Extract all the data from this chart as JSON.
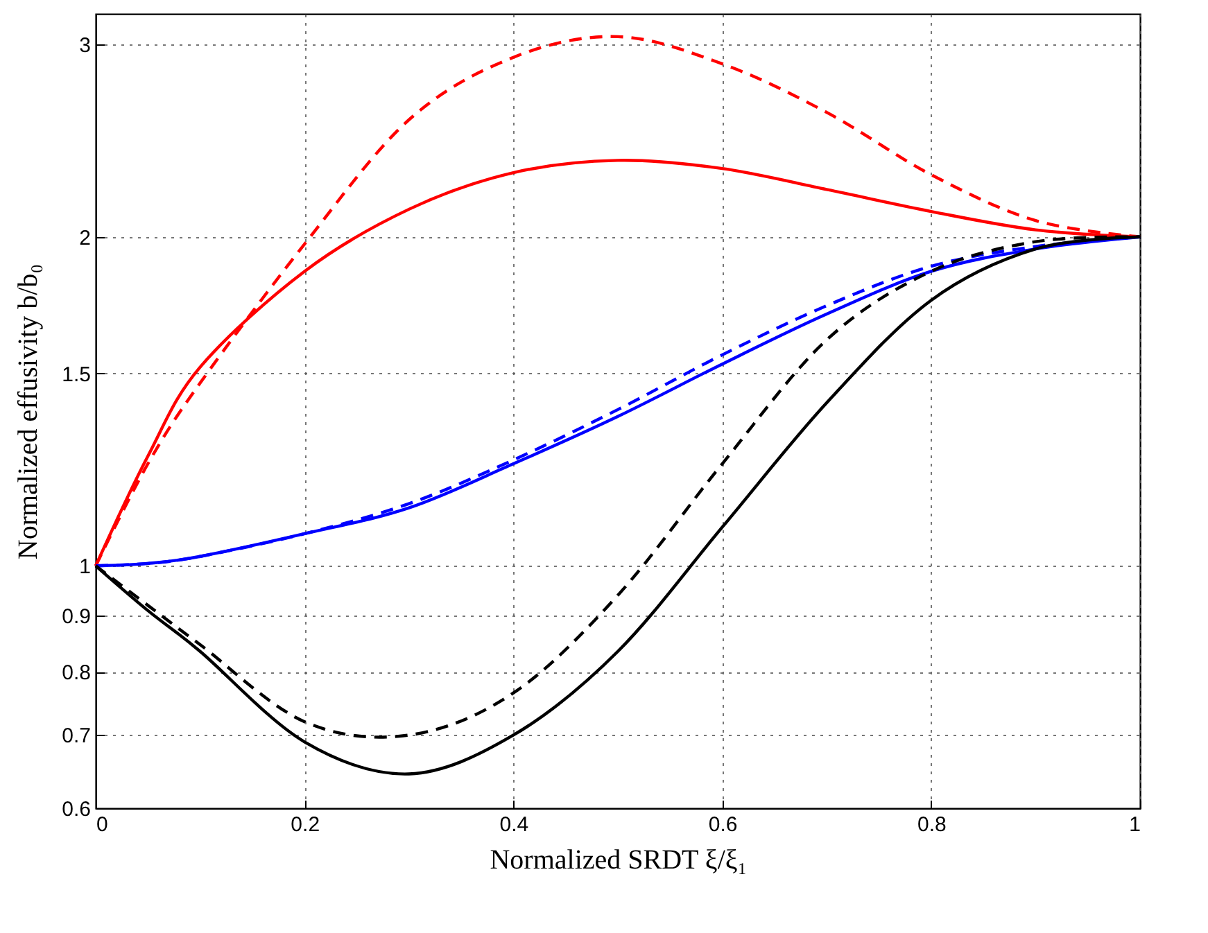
{
  "chart_data": {
    "type": "line",
    "xlabel": "Normalized SRDT ξ/ξ₁",
    "ylabel": "Normalized effusivity b/b₀",
    "log": "y",
    "grid": true,
    "xlim": [
      0,
      1
    ],
    "xticks": [
      0,
      0.2,
      0.4,
      0.6,
      0.8,
      1
    ],
    "ylim": [
      0.6,
      3.2
    ],
    "yticks": [
      0.6,
      0.7,
      0.8,
      0.9,
      1,
      1.5,
      2,
      3
    ],
    "x": [
      0,
      0.05,
      0.1,
      0.2,
      0.3,
      0.4,
      0.5,
      0.6,
      0.7,
      0.8,
      0.9,
      1
    ],
    "series": [
      {
        "color": "#ff0000",
        "line_style": "dashed",
        "values": [
          1,
          1.24,
          1.47,
          1.97,
          2.56,
          2.92,
          3.05,
          2.88,
          2.6,
          2.28,
          2.07,
          2
        ]
      },
      {
        "color": "#ff0000",
        "line_style": "solid",
        "values": [
          1,
          1.26,
          1.52,
          1.86,
          2.12,
          2.29,
          2.35,
          2.31,
          2.21,
          2.11,
          2.03,
          2
        ]
      },
      {
        "color": "#0000ff",
        "line_style": "dashed",
        "values": [
          1,
          1.005,
          1.02,
          1.07,
          1.14,
          1.25,
          1.39,
          1.56,
          1.73,
          1.88,
          1.96,
          2
        ]
      },
      {
        "color": "#0000ff",
        "line_style": "solid",
        "values": [
          1,
          1.005,
          1.02,
          1.07,
          1.13,
          1.24,
          1.37,
          1.53,
          1.7,
          1.86,
          1.95,
          2
        ]
      },
      {
        "color": "#000000",
        "line_style": "dashed",
        "values": [
          1,
          0.92,
          0.847,
          0.72,
          0.7,
          0.765,
          0.94,
          1.24,
          1.61,
          1.86,
          1.98,
          2
        ]
      },
      {
        "color": "#000000",
        "line_style": "solid",
        "values": [
          1,
          0.91,
          0.835,
          0.69,
          0.645,
          0.7,
          0.835,
          1.085,
          1.41,
          1.75,
          1.95,
          2
        ]
      }
    ]
  }
}
